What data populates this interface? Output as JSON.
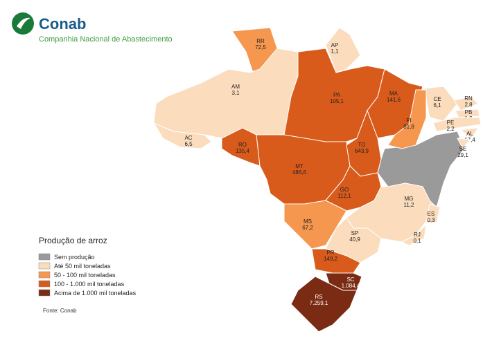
{
  "header": {
    "brand": "Conab",
    "subtitle": "Companhia Nacional de Abastecimento"
  },
  "legend": {
    "title": "Produção de arroz",
    "items": [
      {
        "label": "Sem produção",
        "color": "#9a9a9a"
      },
      {
        "label": "Até 50 mil toneladas",
        "color": "#fbdcbd"
      },
      {
        "label": "50 - 100 mil toneladas",
        "color": "#f5974e"
      },
      {
        "label": "100 - 1.000 mil toneladas",
        "color": "#d95b1b"
      },
      {
        "label": "Acima de 1.000 mil toneladas",
        "color": "#7b2b13"
      }
    ]
  },
  "states": [
    {
      "code": "RR",
      "value": "72,5"
    },
    {
      "code": "AP",
      "value": "1,1"
    },
    {
      "code": "AM",
      "value": "3,1"
    },
    {
      "code": "PA",
      "value": "105,1"
    },
    {
      "code": "MA",
      "value": "141,6"
    },
    {
      "code": "CE",
      "value": "6,1"
    },
    {
      "code": "RN",
      "value": "2,8"
    },
    {
      "code": "PB",
      "value": "1,2"
    },
    {
      "code": "PE",
      "value": "2,2"
    },
    {
      "code": "AL",
      "value": "17,4"
    },
    {
      "code": "SE",
      "value": "29,1"
    },
    {
      "code": "PI",
      "value": "81,8"
    },
    {
      "code": "AC",
      "value": "6,5"
    },
    {
      "code": "RO",
      "value": "135,4"
    },
    {
      "code": "MT",
      "value": "486,6"
    },
    {
      "code": "TO",
      "value": "643,9"
    },
    {
      "code": "GO",
      "value": "112,1"
    },
    {
      "code": "MG",
      "value": "11,2"
    },
    {
      "code": "ES",
      "value": "0,3"
    },
    {
      "code": "RJ",
      "value": "0,1"
    },
    {
      "code": "MS",
      "value": "67,2"
    },
    {
      "code": "SP",
      "value": "40,9"
    },
    {
      "code": "PR",
      "value": "149,2"
    },
    {
      "code": "SC",
      "value": "1.084,4"
    },
    {
      "code": "RS",
      "value": "7.259,1"
    }
  ],
  "source": "Fonte: Conab"
}
